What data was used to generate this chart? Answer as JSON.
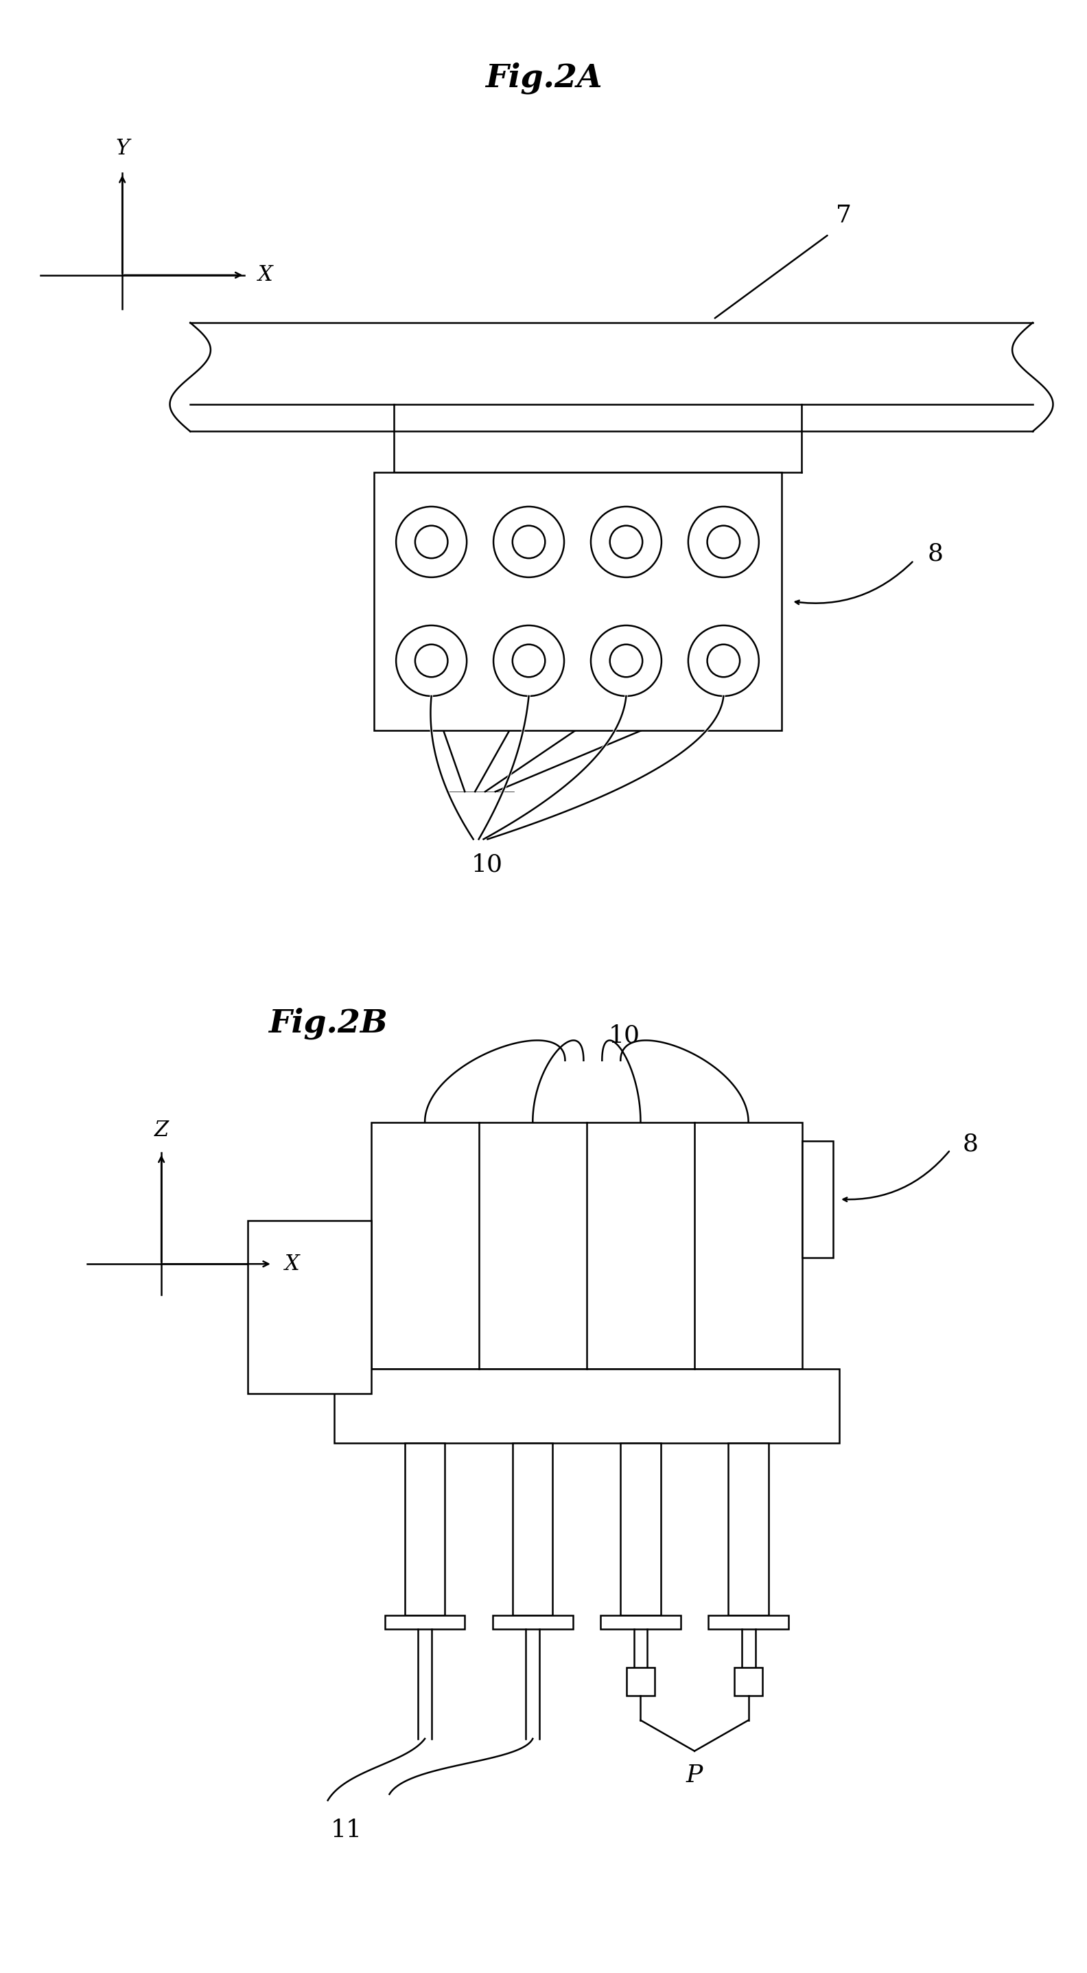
{
  "fig_title_A": "Fig.2A",
  "fig_title_B": "Fig.2B",
  "bg_color": "#ffffff",
  "line_color": "#000000",
  "lw": 1.8,
  "label_7": "7",
  "label_8": "8",
  "label_10": "10",
  "label_11": "11",
  "label_P": "P",
  "label_X": "X",
  "label_Y": "Y",
  "label_Z": "Z"
}
